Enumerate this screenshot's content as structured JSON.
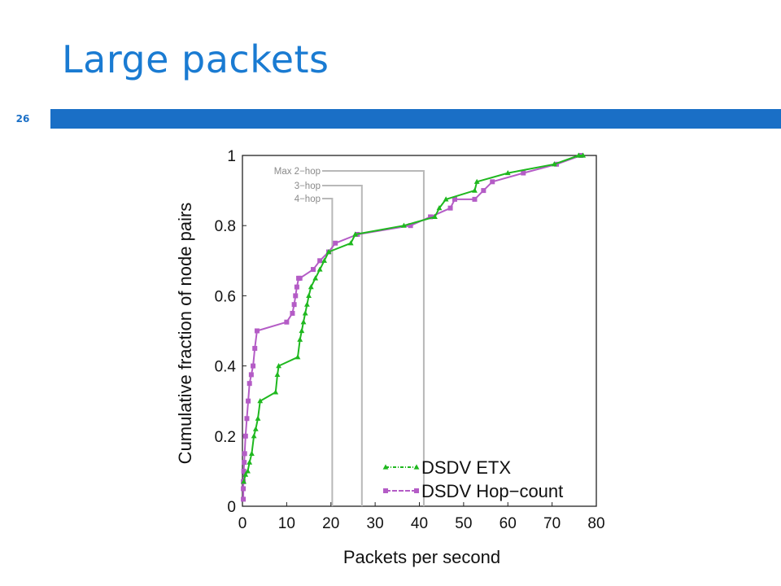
{
  "slide": {
    "title": "Large packets",
    "page_number": "26",
    "accent_color": "#1a6fc6",
    "title_color": "#1a7bd2"
  },
  "chart_data": {
    "type": "line",
    "xlabel": "Packets per second",
    "ylabel": "Cumulative fraction of node pairs",
    "xlim": [
      0,
      80
    ],
    "ylim": [
      0,
      1
    ],
    "xticks": [
      "0",
      "10",
      "20",
      "30",
      "40",
      "50",
      "60",
      "70",
      "80"
    ],
    "yticks": [
      "0",
      "0.2",
      "0.4",
      "0.6",
      "0.8",
      "1"
    ],
    "grid": false,
    "legend_position": "bottom-right",
    "annotations": [
      {
        "label": "Max 2−hop",
        "x": 41
      },
      {
        "label": "3−hop",
        "x": 27
      },
      {
        "label": "4−hop",
        "x": 20.3
      }
    ],
    "series": [
      {
        "name": "DSDV ETX",
        "color": "#1fb81f",
        "marker": "triangle",
        "x": [
          0.3,
          0.7,
          1.2,
          1.6,
          2.1,
          2.6,
          3.0,
          3.5,
          4.0,
          7.5,
          7.9,
          8.2,
          12.5,
          13.0,
          13.4,
          13.8,
          14.2,
          14.6,
          15.0,
          15.5,
          16.5,
          17.5,
          18.5,
          19.5,
          24.5,
          25.5,
          36.5,
          43.5,
          44.5,
          46.0,
          52.5,
          53.0,
          60.0,
          70.5,
          76.0,
          77.0
        ],
        "y": [
          0.07,
          0.09,
          0.1,
          0.125,
          0.15,
          0.2,
          0.22,
          0.25,
          0.3,
          0.325,
          0.375,
          0.4,
          0.425,
          0.475,
          0.5,
          0.525,
          0.55,
          0.575,
          0.6,
          0.625,
          0.65,
          0.675,
          0.7,
          0.725,
          0.75,
          0.775,
          0.8,
          0.825,
          0.85,
          0.875,
          0.9,
          0.925,
          0.95,
          0.975,
          1.0,
          1.0
        ]
      },
      {
        "name": "DSDV Hop−count",
        "color": "#b45cc6",
        "marker": "square",
        "x": [
          0.2,
          0.2,
          0.2,
          0.3,
          0.4,
          0.5,
          0.7,
          1.0,
          1.3,
          1.6,
          2.0,
          2.4,
          2.8,
          3.3,
          10.0,
          11.3,
          11.7,
          12.0,
          12.3,
          12.7,
          13.0,
          16.0,
          17.5,
          19.5,
          21.0,
          26.0,
          38.0,
          42.5,
          47.0,
          48.0,
          52.5,
          54.5,
          56.5,
          63.5,
          71.0,
          76.5
        ],
        "y": [
          0.02,
          0.05,
          0.07,
          0.1,
          0.125,
          0.15,
          0.2,
          0.25,
          0.3,
          0.35,
          0.375,
          0.4,
          0.45,
          0.5,
          0.525,
          0.55,
          0.575,
          0.6,
          0.625,
          0.65,
          0.65,
          0.675,
          0.7,
          0.725,
          0.75,
          0.775,
          0.8,
          0.825,
          0.85,
          0.875,
          0.875,
          0.9,
          0.925,
          0.95,
          0.975,
          1.0
        ]
      }
    ]
  }
}
